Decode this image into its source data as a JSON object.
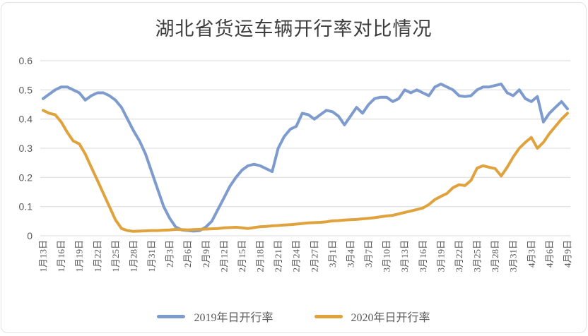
{
  "chart_data": {
    "type": "line",
    "title": "湖北省货运车辆开行率对比情况",
    "xlabel": "",
    "ylabel": "",
    "ylim": [
      0,
      0.6
    ],
    "y_ticks": [
      0,
      0.1,
      0.2,
      0.3,
      0.4,
      0.5,
      0.6
    ],
    "grid": "horizontal",
    "legend_position": "bottom",
    "x_tick_interval_days": 3,
    "x_tick_labels": [
      "1月13日",
      "1月16日",
      "1月19日",
      "1月22日",
      "1月25日",
      "1月28日",
      "1月31日",
      "2月3日",
      "2月6日",
      "2月9日",
      "2月12日",
      "2月15日",
      "2月18日",
      "2月21日",
      "2月24日",
      "2月27日",
      "3月1日",
      "3月4日",
      "3月7日",
      "3月10日",
      "3月13日",
      "3月16日",
      "3月19日",
      "3月22日",
      "3月25日",
      "3月28日",
      "3月31日",
      "4月3日",
      "4月6日",
      "4月9日"
    ],
    "series": [
      {
        "name": "2019年日开行率",
        "color": "#7d9bcd",
        "values": [
          0.47,
          0.485,
          0.5,
          0.51,
          0.51,
          0.5,
          0.49,
          0.465,
          0.48,
          0.49,
          0.49,
          0.48,
          0.465,
          0.44,
          0.4,
          0.36,
          0.325,
          0.28,
          0.22,
          0.16,
          0.1,
          0.06,
          0.03,
          0.02,
          0.018,
          0.016,
          0.018,
          0.03,
          0.05,
          0.09,
          0.13,
          0.17,
          0.2,
          0.225,
          0.24,
          0.245,
          0.24,
          0.23,
          0.22,
          0.3,
          0.34,
          0.365,
          0.375,
          0.42,
          0.415,
          0.4,
          0.415,
          0.43,
          0.425,
          0.41,
          0.38,
          0.41,
          0.44,
          0.42,
          0.45,
          0.47,
          0.475,
          0.475,
          0.46,
          0.47,
          0.5,
          0.49,
          0.5,
          0.49,
          0.48,
          0.51,
          0.52,
          0.51,
          0.5,
          0.48,
          0.477,
          0.48,
          0.5,
          0.51,
          0.51,
          0.515,
          0.52,
          0.49,
          0.48,
          0.5,
          0.47,
          0.46,
          0.477,
          0.39,
          0.42,
          0.44,
          0.46,
          0.435
        ]
      },
      {
        "name": "2020年日开行率",
        "color": "#e0a23c",
        "values": [
          0.43,
          0.42,
          0.415,
          0.39,
          0.355,
          0.325,
          0.315,
          0.28,
          0.235,
          0.19,
          0.145,
          0.1,
          0.055,
          0.025,
          0.018,
          0.015,
          0.016,
          0.017,
          0.018,
          0.018,
          0.019,
          0.02,
          0.022,
          0.021,
          0.02,
          0.021,
          0.022,
          0.023,
          0.024,
          0.025,
          0.027,
          0.028,
          0.029,
          0.027,
          0.025,
          0.028,
          0.031,
          0.032,
          0.034,
          0.035,
          0.037,
          0.038,
          0.04,
          0.042,
          0.044,
          0.045,
          0.046,
          0.048,
          0.051,
          0.052,
          0.054,
          0.055,
          0.056,
          0.058,
          0.06,
          0.062,
          0.065,
          0.068,
          0.07,
          0.075,
          0.08,
          0.085,
          0.09,
          0.095,
          0.107,
          0.124,
          0.135,
          0.145,
          0.165,
          0.175,
          0.172,
          0.19,
          0.232,
          0.24,
          0.235,
          0.23,
          0.205,
          0.235,
          0.27,
          0.3,
          0.32,
          0.337,
          0.3,
          0.32,
          0.35,
          0.375,
          0.4,
          0.42
        ]
      }
    ]
  },
  "colors": {
    "grid": "#d9d9d9",
    "tick_text": "#595959",
    "title_text": "#3d3d3d",
    "card_border": "#e2e2e2"
  }
}
